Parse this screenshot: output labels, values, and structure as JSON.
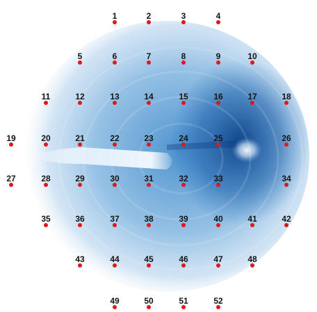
{
  "colors": {
    "background": "#ffffff",
    "density": "#1f73c0",
    "density_dark": "#0b3f86",
    "marker": "#e01818",
    "label": "#141414"
  },
  "points": [
    {
      "label": "1"
    },
    {
      "label": "2"
    },
    {
      "label": "3"
    },
    {
      "label": "4"
    },
    {
      "label": "5"
    },
    {
      "label": "6"
    },
    {
      "label": "7"
    },
    {
      "label": "8"
    },
    {
      "label": "9"
    },
    {
      "label": "10"
    },
    {
      "label": "11"
    },
    {
      "label": "12"
    },
    {
      "label": "13"
    },
    {
      "label": "14"
    },
    {
      "label": "15"
    },
    {
      "label": "16"
    },
    {
      "label": "17"
    },
    {
      "label": "18"
    },
    {
      "label": "19"
    },
    {
      "label": "20"
    },
    {
      "label": "21"
    },
    {
      "label": "22"
    },
    {
      "label": "23"
    },
    {
      "label": "24"
    },
    {
      "label": "25"
    },
    {
      "label": "26"
    },
    {
      "label": "27"
    },
    {
      "label": "28"
    },
    {
      "label": "29"
    },
    {
      "label": "30"
    },
    {
      "label": "31"
    },
    {
      "label": "32"
    },
    {
      "label": "33"
    },
    {
      "label": "34"
    },
    {
      "label": "35"
    },
    {
      "label": "36"
    },
    {
      "label": "37"
    },
    {
      "label": "38"
    },
    {
      "label": "39"
    },
    {
      "label": "40"
    },
    {
      "label": "41"
    },
    {
      "label": "42"
    },
    {
      "label": "43"
    },
    {
      "label": "44"
    },
    {
      "label": "45"
    },
    {
      "label": "46"
    },
    {
      "label": "47"
    },
    {
      "label": "48"
    },
    {
      "label": "49"
    },
    {
      "label": "50"
    },
    {
      "label": "51"
    },
    {
      "label": "52"
    }
  ]
}
